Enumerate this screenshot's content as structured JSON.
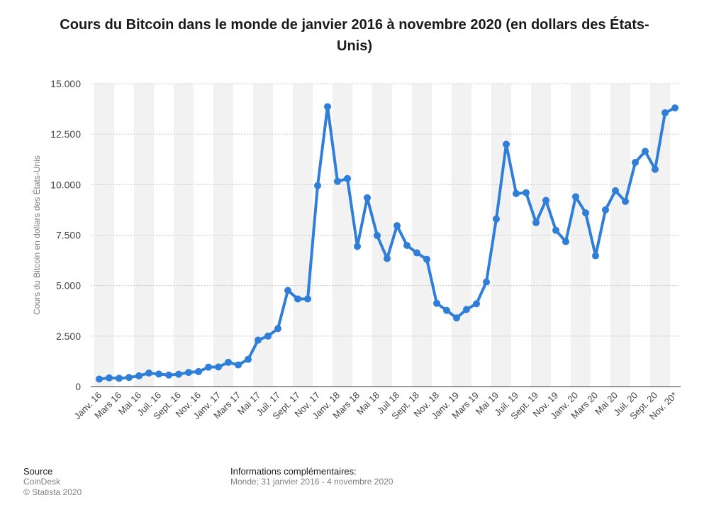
{
  "title": "Cours du Bitcoin dans le monde de janvier 2016 à novembre 2020 (en dollars des États-Unis)",
  "chart_data": {
    "type": "line",
    "title": "Cours du Bitcoin dans le monde de janvier 2016 à novembre 2020 (en dollars des États-Unis)",
    "ylabel": "Cours du Bitcoin en dollars des États-Unis",
    "xlabel": "",
    "ylim": [
      0,
      15000
    ],
    "yticks": [
      {
        "value": 0,
        "label": "0"
      },
      {
        "value": 2500,
        "label": "2.500"
      },
      {
        "value": 5000,
        "label": "5.000"
      },
      {
        "value": 7500,
        "label": "7.500"
      },
      {
        "value": 10000,
        "label": "10.000"
      },
      {
        "value": 12500,
        "label": "12.500"
      },
      {
        "value": 15000,
        "label": "15.000"
      }
    ],
    "x_tick_labels": [
      "Janv. 16",
      "Mars 16",
      "Mai 16",
      "Juil. 16",
      "Sept. 16",
      "Nov. 16",
      "Janv. 17",
      "Mars 17",
      "Mai 17",
      "Juil. 17",
      "Sept. 17",
      "Nov. 17",
      "Janv. 18",
      "Mars 18",
      "Mai 18",
      "Juil 18",
      "Sept. 18",
      "Nov. 18",
      "Janv. 19",
      "Mars 19",
      "Mai 19",
      "Juil. 19",
      "Sept. 19",
      "Nov. 19",
      "Janv. 20",
      "Mars 20",
      "Mai 20",
      "Juil. 20",
      "Sept. 20",
      "Nov. 20*"
    ],
    "grid": true,
    "series": [
      {
        "color": "#2f7ed8",
        "values": [
          370,
          430,
          410,
          450,
          530,
          670,
          620,
          570,
          610,
          700,
          740,
          960,
          970,
          1200,
          1070,
          1350,
          2300,
          2500,
          2870,
          4760,
          4340,
          4340,
          9950,
          13860,
          10160,
          10300,
          6940,
          9350,
          7480,
          6340,
          7970,
          6990,
          6620,
          6300,
          4120,
          3770,
          3400,
          3820,
          4100,
          5180,
          8300,
          12000,
          9560,
          9600,
          8120,
          9220,
          7740,
          7180,
          9400,
          8600,
          6480,
          8750,
          9700,
          9170,
          11100,
          11650,
          10760,
          13560,
          13800
        ]
      }
    ]
  },
  "footer": {
    "source_heading": "Source",
    "source_name": "CoinDesk",
    "copyright": "© Statista 2020",
    "info_heading": "Informations complémentaires:",
    "info_text": "Monde; 31 janvier 2016 - 4 novembre 2020"
  }
}
